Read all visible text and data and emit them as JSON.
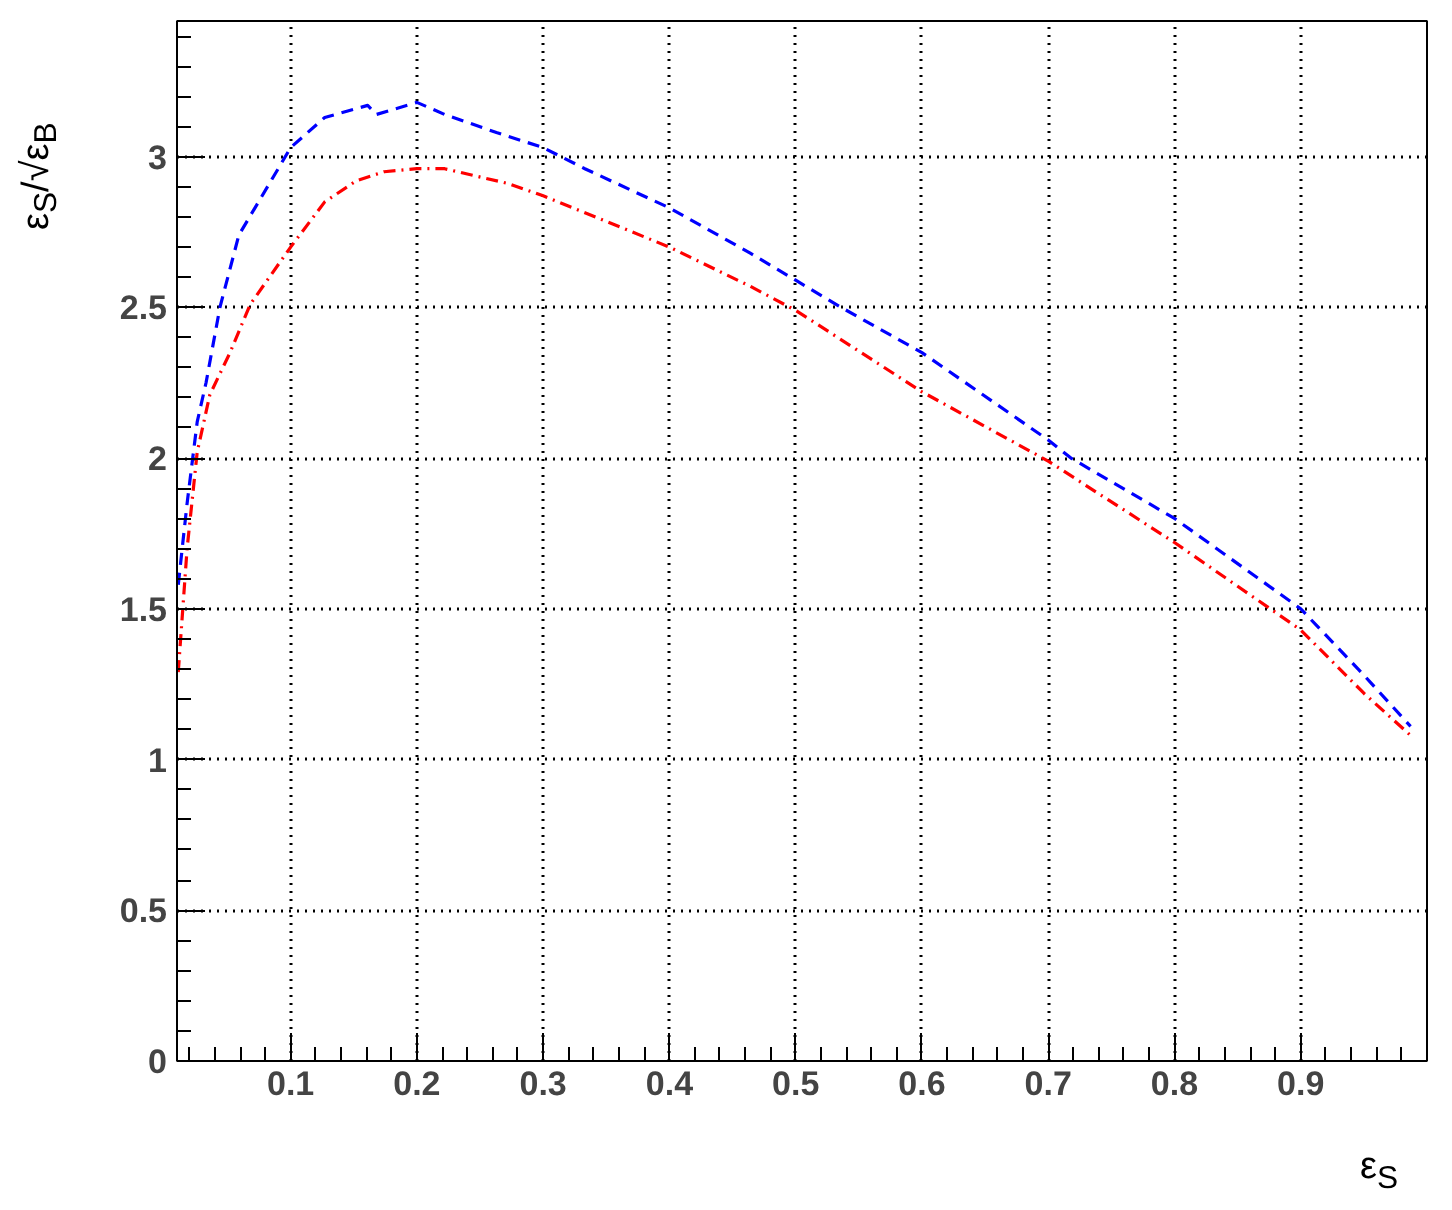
{
  "chart_data": {
    "type": "line",
    "xlabel": "ε$_{S}$",
    "ylabel": "ε$_{S}$/√ε$_{B}$",
    "xlim": [
      0.01,
      1.0
    ],
    "ylim": [
      0,
      3.45
    ],
    "xticks": [
      0.1,
      0.2,
      0.3,
      0.4,
      0.5,
      0.6,
      0.7,
      0.8,
      0.9
    ],
    "yticks": [
      0,
      0.5,
      1,
      1.5,
      2,
      2.5,
      3
    ],
    "grid": true,
    "series": [
      {
        "color": "#0000ff",
        "line_style": "dashed",
        "x": [
          0.011,
          0.018,
          0.026,
          0.033,
          0.044,
          0.059,
          0.076,
          0.1,
          0.127,
          0.161,
          0.168,
          0.2,
          0.222,
          0.263,
          0.3,
          0.333,
          0.4,
          0.464,
          0.5,
          0.536,
          0.6,
          0.7,
          0.718,
          0.8,
          0.9,
          0.95,
          0.987
        ],
        "values": [
          1.58,
          1.85,
          2.12,
          2.25,
          2.5,
          2.74,
          2.86,
          3.03,
          3.13,
          3.17,
          3.14,
          3.18,
          3.14,
          3.08,
          3.03,
          2.96,
          2.83,
          2.68,
          2.59,
          2.5,
          2.35,
          2.06,
          2.0,
          1.8,
          1.5,
          1.28,
          1.11
        ]
      },
      {
        "color": "#ff0000",
        "line_style": "dashdot",
        "x": [
          0.011,
          0.018,
          0.026,
          0.036,
          0.052,
          0.068,
          0.1,
          0.127,
          0.152,
          0.174,
          0.2,
          0.222,
          0.273,
          0.3,
          0.4,
          0.464,
          0.5,
          0.6,
          0.7,
          0.8,
          0.9,
          0.95,
          0.987
        ],
        "values": [
          1.29,
          1.7,
          2.02,
          2.21,
          2.35,
          2.51,
          2.7,
          2.85,
          2.92,
          2.95,
          2.96,
          2.96,
          2.91,
          2.87,
          2.7,
          2.57,
          2.49,
          2.22,
          1.99,
          1.72,
          1.43,
          1.22,
          1.08
        ]
      }
    ]
  }
}
